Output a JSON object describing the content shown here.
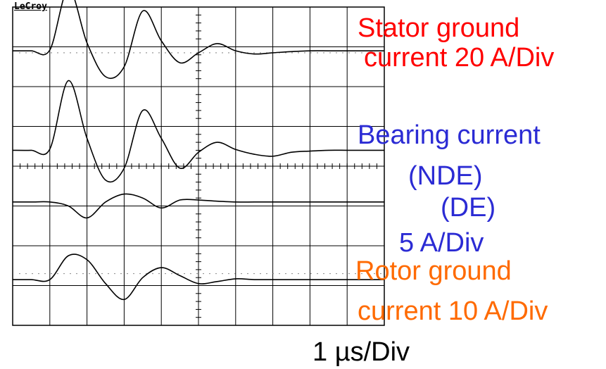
{
  "brand": "LeCroy",
  "labels": {
    "stator_line1": "Stator ground",
    "stator_line2": "current 20 A/Div",
    "bearing_line1": "Bearing current",
    "bearing_nde": "(NDE)",
    "bearing_de": "(DE)",
    "bearing_scale": "5 A/Div",
    "rotor_line1": "Rotor ground",
    "rotor_line2": "current 10 A/Div",
    "time_scale": "1 µs/Div"
  },
  "colors": {
    "stator": "#ff0000",
    "bearing": "#2b2bd4",
    "rotor": "#ff6a00",
    "trace": "#000000",
    "grid": "#000000"
  },
  "chart_data": {
    "type": "line",
    "grid": true,
    "x_divisions": 10,
    "y_divisions": 8,
    "x": [
      0,
      0.5,
      1.0,
      1.5,
      2.0,
      2.5,
      3.0,
      3.5,
      4.0,
      4.5,
      5.0,
      5.5,
      6.0,
      6.5,
      7.0,
      7.5,
      8.0,
      8.5,
      9.0,
      9.5,
      10.0
    ],
    "series": [
      {
        "name": "Stator ground current",
        "offset_div": 6.9,
        "values": [
          0,
          0,
          0.02,
          1.55,
          0.2,
          -0.65,
          -0.4,
          1.0,
          0.25,
          -0.3,
          -0.05,
          0.18,
          0.0,
          -0.08,
          -0.05,
          -0.02,
          0,
          0,
          0,
          0,
          0
        ]
      },
      {
        "name": "Bearing current (NDE)",
        "offset_div": 4.4,
        "values": [
          0,
          0,
          0.03,
          1.75,
          0.3,
          -0.75,
          -0.45,
          1.0,
          0.3,
          -0.45,
          -0.05,
          0.2,
          0.02,
          -0.1,
          -0.15,
          -0.05,
          -0.02,
          0,
          0,
          0,
          0
        ]
      },
      {
        "name": "Bearing current (DE)",
        "offset_div": 3.1,
        "values": [
          0,
          0,
          0,
          -0.1,
          -0.4,
          0,
          0.2,
          0.1,
          -0.15,
          0.05,
          0.05,
          0.02,
          0,
          0,
          0,
          0,
          0,
          0,
          0,
          0,
          0
        ]
      },
      {
        "name": "Rotor ground current",
        "offset_div": 1.15,
        "values": [
          0,
          0,
          0,
          0.6,
          0.5,
          -0.1,
          -0.5,
          0.05,
          0.3,
          0.1,
          -0.1,
          -0.05,
          0.02,
          0,
          0,
          0,
          0,
          0,
          0,
          0,
          0
        ]
      }
    ]
  }
}
